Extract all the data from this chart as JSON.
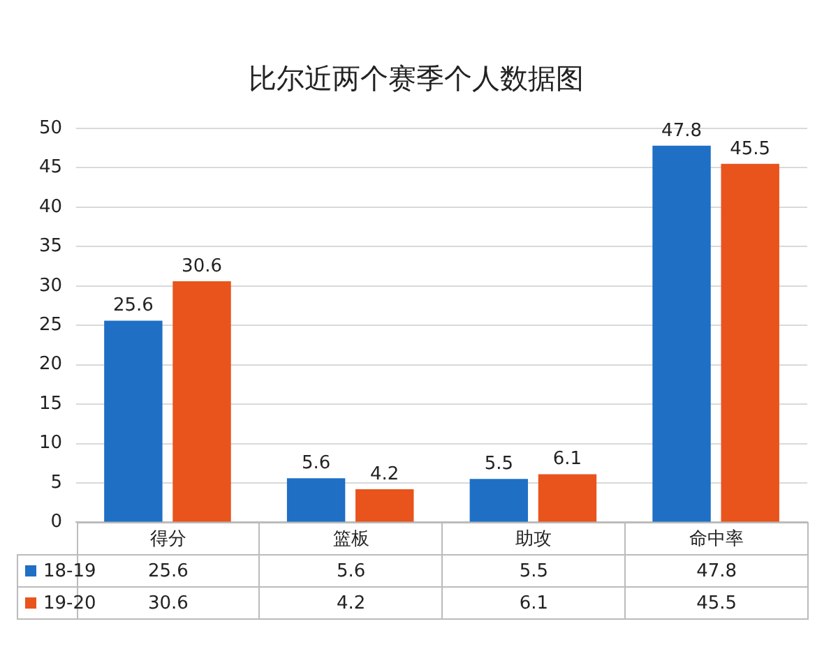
{
  "chart_data": {
    "type": "bar",
    "title": "比尔近两个赛季个人数据图",
    "categories": [
      "得分",
      "篮板",
      "助攻",
      "命中率"
    ],
    "series": [
      {
        "name": "18-19",
        "color": "#1f6fc5",
        "values": [
          25.6,
          5.6,
          5.5,
          47.8
        ]
      },
      {
        "name": "19-20",
        "color": "#e8541c",
        "values": [
          30.6,
          4.2,
          6.1,
          45.5
        ]
      }
    ],
    "ylim": [
      0,
      50
    ],
    "yticks": [
      0,
      5,
      10,
      15,
      20,
      25,
      30,
      35,
      40,
      45,
      50
    ],
    "grid": "y",
    "legend": "bottom",
    "data_labels": true,
    "annotations": [
      {
        "text": "25.6",
        "x": "得分",
        "y": 25.6
      },
      {
        "text": "30.6",
        "x": "得分",
        "y": 30.6
      },
      {
        "text": "5.6",
        "x": "篮板",
        "y": 5.6
      },
      {
        "text": "4.2",
        "x": "篮板",
        "y": 4.2
      },
      {
        "text": "5.5",
        "x": "助攻",
        "y": 5.5
      },
      {
        "text": "6.1",
        "x": "助攻",
        "y": 6.1
      },
      {
        "text": "47.8",
        "x": "命中率",
        "y": 47.8
      },
      {
        "text": "45.5",
        "x": "命中率",
        "y": 45.5
      }
    ]
  }
}
